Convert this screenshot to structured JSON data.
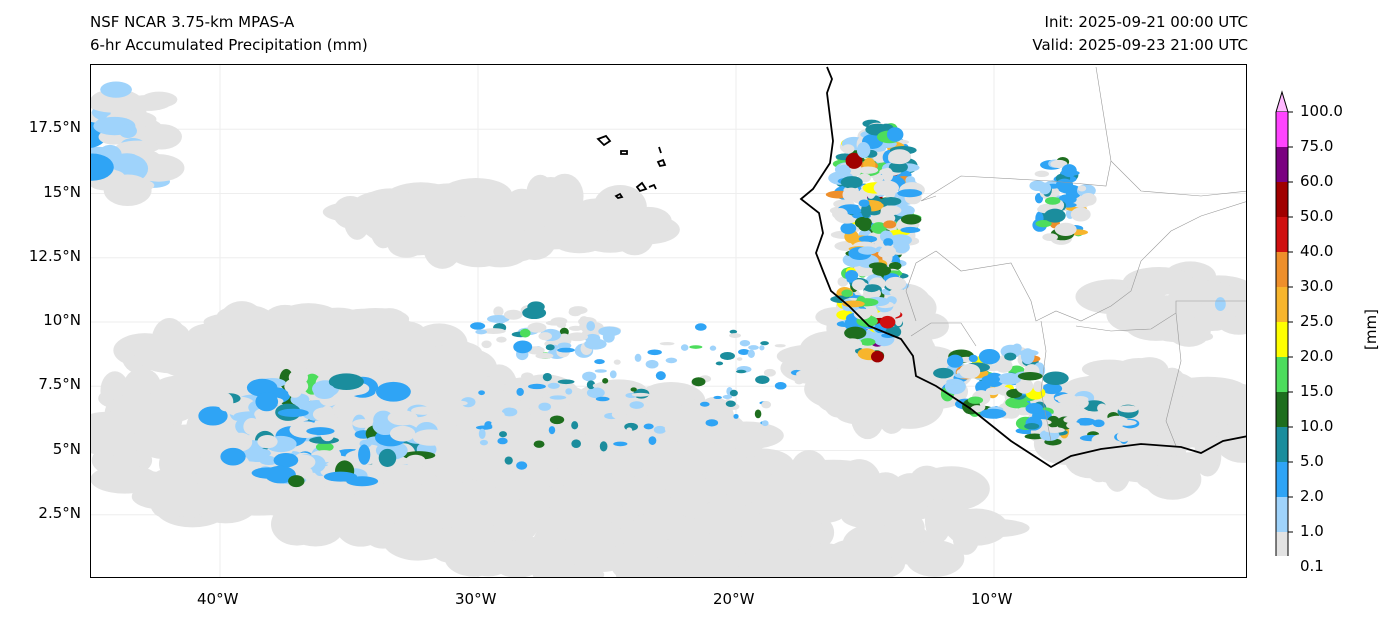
{
  "header": {
    "model": "NSF NCAR 3.75-km MPAS-A",
    "field": "6-hr Accumulated Precipitation (mm)",
    "init": "Init: 2025-09-21 00:00 UTC",
    "valid": "Valid: 2025-09-23 21:00 UTC"
  },
  "axes": {
    "lon_ticks": [
      "40°W",
      "30°W",
      "20°W",
      "10°W"
    ],
    "lat_ticks": [
      "17.5°N",
      "15°N",
      "12.5°N",
      "10°N",
      "7.5°N",
      "5°N",
      "2.5°N"
    ],
    "extent": {
      "lon": [
        -45,
        0
      ],
      "lat": [
        0,
        20
      ]
    }
  },
  "colorbar": {
    "label": "[mm]",
    "ticks": [
      "0.1",
      "1.0",
      "2.0",
      "5.0",
      "10.0",
      "15.0",
      "20.0",
      "25.0",
      "30.0",
      "40.0",
      "50.0",
      "60.0",
      "75.0",
      "100.0"
    ],
    "colors": [
      "#e3e3e3",
      "#9fd3fb",
      "#2fa4f5",
      "#1b8d9d",
      "#1e6e1e",
      "#4ddd5c",
      "#ffff00",
      "#f7b52d",
      "#ee8f2b",
      "#d01010",
      "#a00000",
      "#7a0080",
      "#ff44ff"
    ],
    "over_color": "#ffb8ff",
    "under_color": "#ffffff"
  }
}
